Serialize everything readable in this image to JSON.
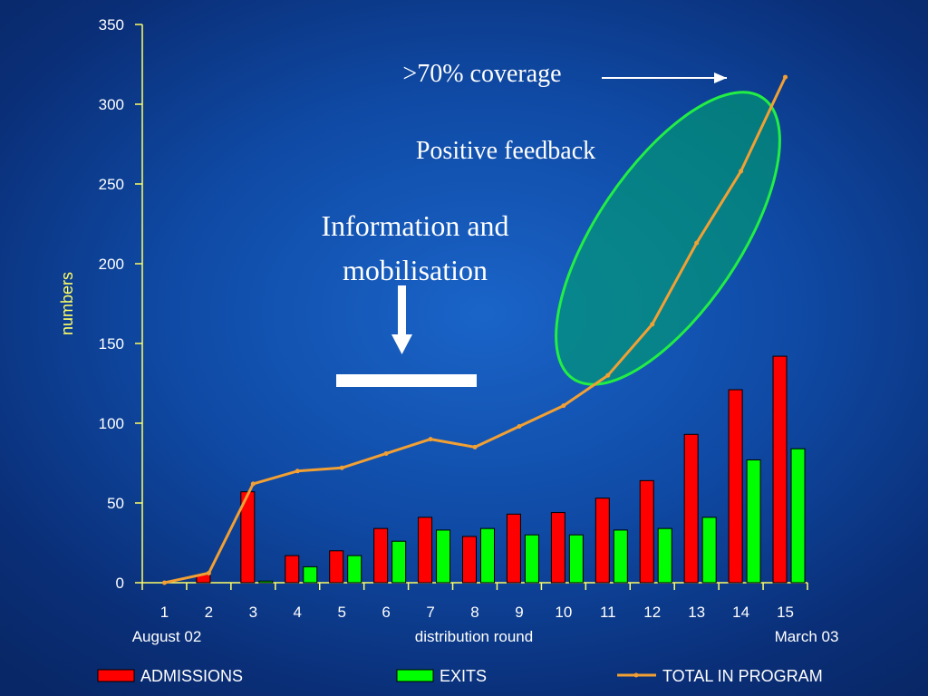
{
  "chart_data": {
    "type": "bar",
    "categories": [
      "1",
      "2",
      "3",
      "4",
      "5",
      "6",
      "7",
      "8",
      "9",
      "10",
      "11",
      "12",
      "13",
      "14",
      "15"
    ],
    "series": [
      {
        "name": "ADMISSIONS",
        "kind": "bar",
        "color": "#ff0000",
        "values": [
          0,
          5,
          57,
          17,
          20,
          34,
          41,
          29,
          43,
          44,
          53,
          64,
          93,
          121,
          142
        ]
      },
      {
        "name": "EXITS",
        "kind": "bar",
        "color": "#00ff00",
        "values": [
          0,
          0,
          1,
          10,
          17,
          26,
          33,
          34,
          30,
          30,
          33,
          34,
          41,
          77,
          84
        ]
      },
      {
        "name": "TOTAL IN PROGRAM",
        "kind": "line",
        "color": "#f2a033",
        "values": [
          0,
          6,
          62,
          70,
          72,
          81,
          90,
          85,
          98,
          111,
          130,
          162,
          213,
          258,
          317
        ]
      }
    ],
    "ylabel": "numbers",
    "xlabel": "distribution round",
    "x_start_label": "August 02",
    "x_end_label": "March 03",
    "ylim": [
      0,
      350
    ],
    "yticks": [
      0,
      50,
      100,
      150,
      200,
      250,
      300,
      350
    ],
    "grid": false,
    "legend_position": "bottom"
  },
  "annotations": {
    "coverage": ">70% coverage",
    "feedback": "Positive feedback",
    "info_line1": "Information and",
    "info_line2": "mobilisation"
  },
  "colors": {
    "axis": "#ffff66",
    "ylabel": "#ffff66",
    "ellipse_fill": "#00a070",
    "ellipse_stroke": "#22ee44",
    "arrow": "#ffffff"
  }
}
